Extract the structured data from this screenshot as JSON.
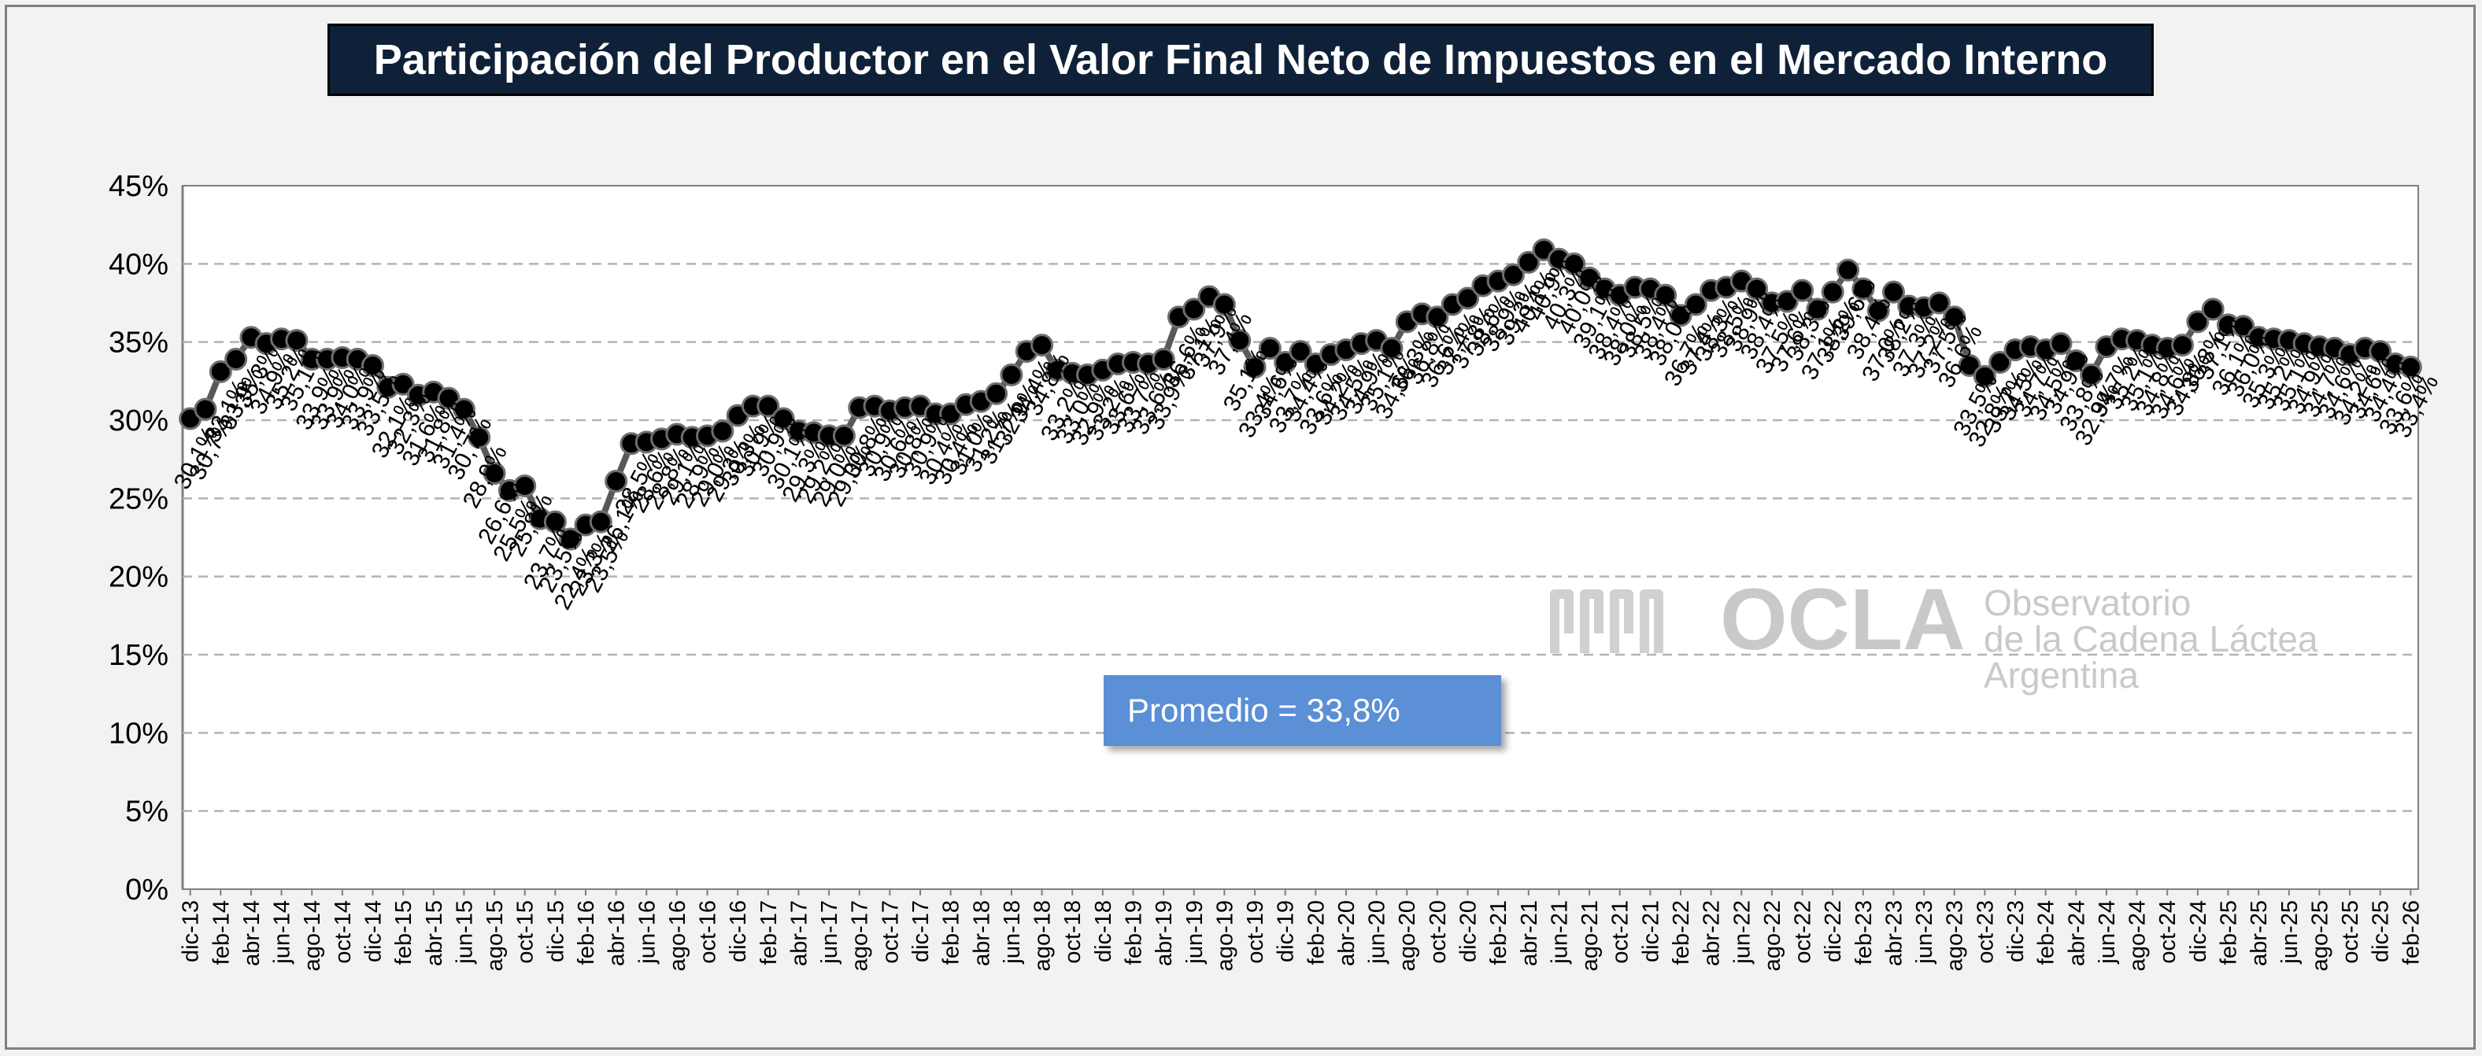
{
  "chart_data": {
    "type": "line",
    "title": "Participación del Productor en el Valor Final Neto de Impuestos en el Mercado Interno",
    "xlabel": "",
    "ylabel": "",
    "ylim": [
      0,
      45
    ],
    "y_ticks": [
      "0%",
      "5%",
      "10%",
      "15%",
      "20%",
      "25%",
      "30%",
      "35%",
      "40%",
      "45%"
    ],
    "grid": "horizontal dashed",
    "legend": "none",
    "line_color": "#595959",
    "marker_color": "#000000",
    "x_tick_labels": [
      "dic-13",
      "feb-14",
      "abr-14",
      "jun-14",
      "ago-14",
      "oct-14",
      "dic-14",
      "feb-15",
      "abr-15",
      "jun-15",
      "ago-15",
      "oct-15",
      "dic-15",
      "feb-16",
      "abr-16",
      "jun-16",
      "ago-16",
      "oct-16",
      "dic-16",
      "feb-17",
      "abr-17",
      "jun-17",
      "ago-17",
      "oct-17",
      "dic-17",
      "feb-18",
      "abr-18",
      "jun-18",
      "ago-18",
      "oct-18",
      "dic-18",
      "feb-19",
      "abr-19",
      "jun-19",
      "ago-19",
      "oct-19",
      "dic-19",
      "feb-20",
      "abr-20",
      "jun-20",
      "ago-20",
      "oct-20",
      "dic-20",
      "feb-21",
      "abr-21",
      "jun-21",
      "ago-21",
      "oct-21",
      "dic-21",
      "feb-22",
      "abr-22",
      "jun-22",
      "ago-22",
      "oct-22",
      "dic-22",
      "feb-23",
      "abr-23",
      "jun-23",
      "ago-23",
      "oct-23",
      "dic-23",
      "feb-24",
      "abr-24",
      "jun-24",
      "ago-24",
      "oct-24",
      "dic-24",
      "feb-25",
      "abr-25",
      "jun-25",
      "ago-25",
      "oct-25",
      "dic-25",
      "feb-26"
    ],
    "series": [
      {
        "values": [
          30.1,
          30.7,
          33.1,
          33.9,
          35.3,
          34.9,
          35.2,
          35.1,
          33.9,
          33.9,
          34.0,
          33.9,
          33.5,
          32.1,
          32.3,
          31.6,
          31.8,
          31.4,
          30.7,
          28.9,
          26.6,
          25.5,
          25.8,
          23.7,
          23.5,
          22.4,
          23.3,
          23.5,
          26.1,
          28.5,
          28.6,
          28.8,
          29.1,
          28.9,
          29.0,
          29.3,
          30.3,
          30.9,
          30.9,
          30.1,
          29.3,
          29.2,
          29.0,
          29.0,
          30.8,
          30.9,
          30.6,
          30.8,
          30.9,
          30.4,
          30.4,
          31.0,
          31.2,
          31.7,
          32.9,
          34.4,
          34.8,
          33.2,
          33.0,
          32.9,
          33.2,
          33.6,
          33.7,
          33.6,
          33.9,
          36.6,
          37.1,
          37.9,
          37.4,
          35.1,
          33.4,
          34.6,
          33.7,
          34.4,
          33.6,
          34.2,
          34.5,
          34.9,
          35.1,
          34.6,
          36.3,
          36.8,
          36.6,
          37.4,
          37.8,
          38.6,
          38.9,
          39.3,
          40.1,
          40.9,
          40.3,
          40.0,
          39.1,
          38.4,
          38.0,
          38.5,
          38.4,
          38.0,
          36.7,
          37.4,
          38.3,
          38.5,
          38.9,
          38.4,
          37.5,
          37.6,
          38.3,
          37.1,
          38.2,
          39.6,
          38.4,
          37.0,
          38.2,
          37.3,
          37.2,
          37.5,
          36.6,
          33.5,
          32.8,
          33.7,
          34.5,
          34.7,
          34.5,
          34.9,
          33.8,
          32.9,
          34.7,
          35.2,
          35.1,
          34.8,
          34.6,
          34.8,
          36.3,
          37.1,
          36.1,
          36.0,
          35.3,
          35.2,
          35.1,
          34.9,
          34.7,
          34.6,
          34.2,
          34.6,
          34.4,
          33.6,
          33.4
        ]
      }
    ],
    "data_labels": [
      "30,1%",
      "30,7%",
      "33,1%",
      "33,9%",
      "35,3%",
      "34,9%",
      "35,2%",
      "35,1%",
      "33,9%",
      "33,9%",
      "34,0%",
      "33,9%",
      "33,5%",
      "32,1%",
      "32,3%",
      "31,6%",
      "31,8%",
      "31,4%",
      "30,7%",
      "28,9%",
      "26,6%",
      "25,5%",
      "25,8%",
      "23,7%",
      "23,5%",
      "22,4%",
      "23,3%",
      "23,5%",
      "26,1%",
      "28,5%",
      "28,6%",
      "28,8%",
      "29,1%",
      "28,9%",
      "29,0%",
      "29,3%",
      "30,3%",
      "30,9%",
      "30,9%",
      "30,1%",
      "29,3%",
      "29,2%",
      "29,0%",
      "29,0%",
      "30,8%",
      "30,9%",
      "30,6%",
      "30,8%",
      "30,9%",
      "30,4%",
      "30,4%",
      "31,0%",
      "31,2%",
      "31,7%",
      "32,9%",
      "34,4%",
      "34,8%",
      "33,2%",
      "33,0%",
      "32,9%",
      "33,2%",
      "33,6%",
      "33,7%",
      "33,6%",
      "33,9%",
      "36,6%",
      "37,1%",
      "37,9%",
      "37,4%",
      "35,1%",
      "33,4%",
      "34,6%",
      "33,7%",
      "34,4%",
      "33,6%",
      "34,2%",
      "34,5%",
      "34,9%",
      "35,1%",
      "34,6%",
      "36,3%",
      "36,8%",
      "36,6%",
      "37,4%",
      "37,8%",
      "38,6%",
      "38,9%",
      "39,3%",
      "40,1%",
      "40,9%",
      "40,3%",
      "40,0%",
      "39,1%",
      "38,4%",
      "38,0%",
      "38,5%",
      "38,4%",
      "38,0%",
      "36,7%",
      "37,4%",
      "38,3%",
      "38,5%",
      "38,9%",
      "38,4%",
      "37,5%",
      "37,6%",
      "38,3%",
      "37,1%",
      "38,2%",
      "39,6%",
      "38,4%",
      "37,0%",
      "38,2%",
      "37,3%",
      "37,2%",
      "37,5%",
      "36,6%",
      "33,5%",
      "32,8%",
      "33,7%",
      "34,5%",
      "34,7%",
      "34,5%",
      "34,9%",
      "33,8%",
      "32,9%",
      "34,7%",
      "35,2%",
      "35,1%",
      "34,8%",
      "34,6%",
      "34,8%",
      "36,3%",
      "37,1%",
      "36,1%",
      "36,0%",
      "35,3%",
      "35,2%",
      "35,1%",
      "34,9%",
      "34,7%",
      "34,6%",
      "34,2%",
      "34,6%",
      "34,4%",
      "33,6%",
      "33,4%"
    ],
    "annotation": "Promedio = 33,8%"
  },
  "watermark": {
    "name": "OCLA",
    "line1": "Observatorio",
    "line2": "de la Cadena Láctea",
    "line3": "Argentina",
    "color": "#c9c9c9"
  },
  "colors": {
    "title_bg": "#0f2138",
    "annotation_bg": "#5b8fd6",
    "plot_bg": "#ffffff",
    "page_bg": "#f2f2f2"
  }
}
